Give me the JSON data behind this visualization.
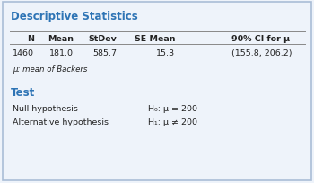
{
  "title": "Descriptive Statistics",
  "title_color": "#2E74B5",
  "bg_color": "#EEF3FA",
  "border_color": "#AABDD6",
  "table_headers": [
    "N",
    "Mean",
    "StDev",
    "SE Mean",
    "90% CI for μ"
  ],
  "table_values": [
    "1460",
    "181.0",
    "585.7",
    "15.3",
    "(155.8, 206.2)"
  ],
  "note": "μ: mean of Backers",
  "section2_title": "Test",
  "null_label": "Null hypothesis",
  "null_value": "H₀: μ = 200",
  "alt_label": "Alternative hypothesis",
  "alt_value": "H₁: μ ≠ 200",
  "fs_title": 8.5,
  "fs_header": 6.8,
  "fs_data": 6.8,
  "fs_note": 6.2,
  "fs_sec": 8.5,
  "fs_hyp": 6.8,
  "text_color": "#222222",
  "line_color": "#888888"
}
